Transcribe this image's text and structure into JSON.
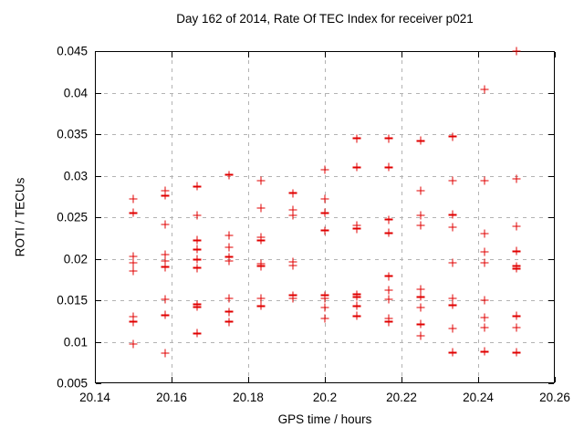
{
  "chart_data": {
    "type": "scatter",
    "title": "Day 162 of 2014, Rate Of TEC Index for receiver p021",
    "xlabel": "GPS time / hours",
    "ylabel": "ROTI / TECUs",
    "xlim": [
      20.14,
      20.26
    ],
    "ylim": [
      0.005,
      0.045
    ],
    "x_ticks": [
      {
        "value": 20.14,
        "label": "20.14"
      },
      {
        "value": 20.16,
        "label": "20.16"
      },
      {
        "value": 20.18,
        "label": "20.18"
      },
      {
        "value": 20.2,
        "label": "20.2"
      },
      {
        "value": 20.22,
        "label": "20.22"
      },
      {
        "value": 20.24,
        "label": "20.24"
      },
      {
        "value": 20.26,
        "label": "20.26"
      }
    ],
    "y_ticks": [
      {
        "value": 0.005,
        "label": "0.005"
      },
      {
        "value": 0.01,
        "label": "0.01"
      },
      {
        "value": 0.015,
        "label": "0.015"
      },
      {
        "value": 0.02,
        "label": "0.02"
      },
      {
        "value": 0.025,
        "label": "0.025"
      },
      {
        "value": 0.03,
        "label": "0.03"
      },
      {
        "value": 0.035,
        "label": "0.035"
      },
      {
        "value": 0.04,
        "label": "0.04"
      },
      {
        "value": 0.045,
        "label": "0.045"
      }
    ],
    "grid": true,
    "legend": false,
    "marker_symbol": "plus",
    "marker_color": "#e00000",
    "grid_color": "#b3b3b3",
    "series": [
      {
        "name": "ROTI",
        "points": [
          [
            20.15,
            0.0272
          ],
          [
            20.15,
            0.0255
          ],
          [
            20.15,
            0.0203
          ],
          [
            20.15,
            0.0195
          ],
          [
            20.15,
            0.0185
          ],
          [
            20.15,
            0.013
          ],
          [
            20.15,
            0.0124
          ],
          [
            20.15,
            0.0097
          ],
          [
            20.1583,
            0.0282
          ],
          [
            20.1583,
            0.0276
          ],
          [
            20.1583,
            0.0241
          ],
          [
            20.1583,
            0.0205
          ],
          [
            20.1583,
            0.0197
          ],
          [
            20.1583,
            0.019
          ],
          [
            20.1583,
            0.0151
          ],
          [
            20.1583,
            0.0132
          ],
          [
            20.1583,
            0.0086
          ],
          [
            20.1667,
            0.0287
          ],
          [
            20.1667,
            0.0252
          ],
          [
            20.1667,
            0.0222
          ],
          [
            20.1667,
            0.0211
          ],
          [
            20.1667,
            0.0199
          ],
          [
            20.1667,
            0.0189
          ],
          [
            20.1667,
            0.0145
          ],
          [
            20.1667,
            0.0142
          ],
          [
            20.1667,
            0.011
          ],
          [
            20.175,
            0.0301
          ],
          [
            20.175,
            0.0228
          ],
          [
            20.175,
            0.0214
          ],
          [
            20.175,
            0.0202
          ],
          [
            20.175,
            0.0197
          ],
          [
            20.175,
            0.0152
          ],
          [
            20.175,
            0.0136
          ],
          [
            20.175,
            0.0124
          ],
          [
            20.1833,
            0.0294
          ],
          [
            20.1833,
            0.0261
          ],
          [
            20.1833,
            0.0226
          ],
          [
            20.1833,
            0.0222
          ],
          [
            20.1833,
            0.0194
          ],
          [
            20.1833,
            0.0191
          ],
          [
            20.1833,
            0.0152
          ],
          [
            20.1833,
            0.0143
          ],
          [
            20.1917,
            0.0279
          ],
          [
            20.1917,
            0.0259
          ],
          [
            20.1917,
            0.0252
          ],
          [
            20.1917,
            0.0196
          ],
          [
            20.1917,
            0.0192
          ],
          [
            20.1917,
            0.0156
          ],
          [
            20.1917,
            0.0152
          ],
          [
            20.2,
            0.0307
          ],
          [
            20.2,
            0.0272
          ],
          [
            20.2,
            0.0255
          ],
          [
            20.2,
            0.0234
          ],
          [
            20.2,
            0.0156
          ],
          [
            20.2,
            0.0152
          ],
          [
            20.2,
            0.0141
          ],
          [
            20.2,
            0.0128
          ],
          [
            20.2083,
            0.0345
          ],
          [
            20.2083,
            0.031
          ],
          [
            20.2083,
            0.024
          ],
          [
            20.2083,
            0.0236
          ],
          [
            20.2083,
            0.0157
          ],
          [
            20.2083,
            0.0154
          ],
          [
            20.2083,
            0.0143
          ],
          [
            20.2083,
            0.0131
          ],
          [
            20.2167,
            0.0345
          ],
          [
            20.2167,
            0.031
          ],
          [
            20.2167,
            0.0247
          ],
          [
            20.2167,
            0.0231
          ],
          [
            20.2167,
            0.0179
          ],
          [
            20.2167,
            0.0162
          ],
          [
            20.2167,
            0.0151
          ],
          [
            20.2167,
            0.0128
          ],
          [
            20.2167,
            0.0124
          ],
          [
            20.225,
            0.0342
          ],
          [
            20.225,
            0.0282
          ],
          [
            20.225,
            0.0252
          ],
          [
            20.225,
            0.024
          ],
          [
            20.225,
            0.0163
          ],
          [
            20.225,
            0.0154
          ],
          [
            20.225,
            0.0141
          ],
          [
            20.225,
            0.0121
          ],
          [
            20.225,
            0.0107
          ],
          [
            20.2333,
            0.0347
          ],
          [
            20.2333,
            0.0294
          ],
          [
            20.2333,
            0.0253
          ],
          [
            20.2333,
            0.0238
          ],
          [
            20.2333,
            0.0195
          ],
          [
            20.2333,
            0.0152
          ],
          [
            20.2333,
            0.0144
          ],
          [
            20.2333,
            0.0116
          ],
          [
            20.2333,
            0.0087
          ],
          [
            20.2417,
            0.0404
          ],
          [
            20.2417,
            0.0294
          ],
          [
            20.2417,
            0.023
          ],
          [
            20.2417,
            0.0208
          ],
          [
            20.2417,
            0.0195
          ],
          [
            20.2417,
            0.015
          ],
          [
            20.2417,
            0.0129
          ],
          [
            20.2417,
            0.0117
          ],
          [
            20.2417,
            0.0088
          ],
          [
            20.25,
            0.045
          ],
          [
            20.25,
            0.0296
          ],
          [
            20.25,
            0.0239
          ],
          [
            20.25,
            0.0209
          ],
          [
            20.25,
            0.0191
          ],
          [
            20.25,
            0.0188
          ],
          [
            20.25,
            0.0131
          ],
          [
            20.25,
            0.0117
          ],
          [
            20.25,
            0.0087
          ]
        ]
      }
    ]
  }
}
